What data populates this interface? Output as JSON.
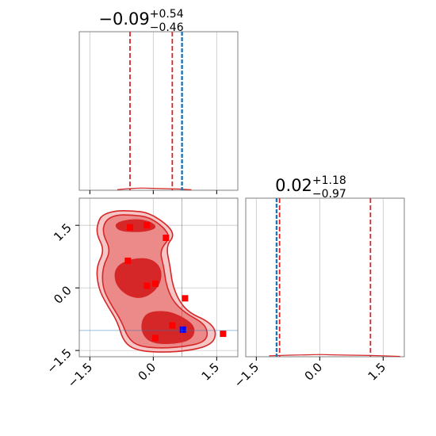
{
  "colors": {
    "kde": "#d62728",
    "kde_fill_outer": "#f6c6c6",
    "kde_fill_mid": "#ec8a8a",
    "kde_fill_inner": "#d62728",
    "truth": "#1f77b4",
    "markers": "#ff0000",
    "highlight": "#0000ff",
    "grid": "#b0b0b0"
  },
  "chart_data": [
    {
      "panel": "marginal-1",
      "type": "line",
      "title": {
        "median": "−0.09",
        "plus": "+0.54",
        "minus": "−0.46"
      },
      "xlim": [
        -1.75,
        2.0
      ],
      "quantile_lines": [
        -0.55,
        0.45
      ],
      "truth_line": 0.68,
      "density_x": [
        -0.85,
        -0.6,
        -0.3,
        0.0,
        0.3,
        0.6,
        0.9
      ],
      "density_y": [
        0.004,
        0.01,
        0.014,
        0.012,
        0.01,
        0.008,
        0.003
      ],
      "x_gridlines": [
        -1.5,
        0.0,
        1.5
      ]
    },
    {
      "panel": "marginal-2",
      "type": "line",
      "title": {
        "median": "0.02",
        "plus": "+1.18",
        "minus": "−0.97"
      },
      "xlim": [
        -1.75,
        2.0
      ],
      "quantile_lines": [
        -0.95,
        1.2
      ],
      "truth_line": -1.02,
      "density_x": [
        -1.2,
        -0.7,
        -0.3,
        0.0,
        0.3,
        0.7,
        1.2,
        1.5,
        1.9
      ],
      "density_y": [
        0.006,
        0.01,
        0.012,
        0.014,
        0.012,
        0.01,
        0.008,
        0.006,
        0.002
      ],
      "x_ticks": [
        "−1.5",
        "0.0",
        "1.5"
      ],
      "x_tick_values": [
        -1.5,
        0.0,
        1.5
      ]
    },
    {
      "panel": "joint",
      "type": "scatter",
      "xlim": [
        -1.75,
        2.0
      ],
      "ylim": [
        -1.65,
        2.15
      ],
      "x_ticks": [
        "−1.5",
        "0.0",
        "1.5"
      ],
      "x_tick_values": [
        -1.5,
        0.0,
        1.5
      ],
      "y_ticks": [
        "1.5",
        "0.0",
        "−1.5"
      ],
      "y_tick_values": [
        1.5,
        0.0,
        -1.5
      ],
      "contours": {
        "outer": [
          [
            -1.3,
            1.6
          ],
          [
            -1.2,
            1.75
          ],
          [
            -0.9,
            1.85
          ],
          [
            -0.5,
            1.85
          ],
          [
            -0.1,
            1.8
          ],
          [
            0.35,
            1.5
          ],
          [
            0.5,
            1.25
          ],
          [
            0.3,
            1.0
          ],
          [
            0.4,
            0.5
          ],
          [
            0.45,
            0.1
          ],
          [
            0.6,
            -0.3
          ],
          [
            0.85,
            -0.6
          ],
          [
            1.3,
            -0.8
          ],
          [
            1.5,
            -1.05
          ],
          [
            1.4,
            -1.35
          ],
          [
            0.9,
            -1.5
          ],
          [
            0.2,
            -1.55
          ],
          [
            -0.4,
            -1.5
          ],
          [
            -0.7,
            -1.3
          ],
          [
            -0.85,
            -0.8
          ],
          [
            -1.1,
            -0.4
          ],
          [
            -1.3,
            0.0
          ],
          [
            -1.35,
            0.5
          ],
          [
            -1.15,
            0.9
          ],
          [
            -1.35,
            1.3
          ]
        ],
        "mid": [
          [
            -1.15,
            1.6
          ],
          [
            -0.9,
            1.75
          ],
          [
            -0.5,
            1.75
          ],
          [
            -0.1,
            1.7
          ],
          [
            0.25,
            1.45
          ],
          [
            0.4,
            1.2
          ],
          [
            0.15,
            0.9
          ],
          [
            0.25,
            0.5
          ],
          [
            0.3,
            0.1
          ],
          [
            0.45,
            -0.3
          ],
          [
            0.75,
            -0.6
          ],
          [
            1.2,
            -0.85
          ],
          [
            1.3,
            -1.1
          ],
          [
            1.2,
            -1.3
          ],
          [
            0.8,
            -1.4
          ],
          [
            0.2,
            -1.45
          ],
          [
            -0.35,
            -1.4
          ],
          [
            -0.6,
            -1.2
          ],
          [
            -0.75,
            -0.8
          ],
          [
            -1.0,
            -0.4
          ],
          [
            -1.2,
            0.0
          ],
          [
            -1.2,
            0.5
          ],
          [
            -1.0,
            0.9
          ],
          [
            -1.2,
            1.3
          ]
        ],
        "inner": [
          [
            [
              -0.9,
              1.55
            ],
            [
              -0.5,
              1.65
            ],
            [
              -0.1,
              1.6
            ],
            [
              0.1,
              1.45
            ],
            [
              -0.2,
              1.35
            ],
            [
              -0.6,
              1.35
            ],
            [
              -0.85,
              1.4
            ]
          ],
          [
            [
              -0.9,
              0.5
            ],
            [
              -0.5,
              0.7
            ],
            [
              -0.05,
              0.7
            ],
            [
              0.2,
              0.45
            ],
            [
              0.15,
              0.05
            ],
            [
              -0.2,
              -0.25
            ],
            [
              -0.6,
              -0.2
            ],
            [
              -0.9,
              0.1
            ]
          ],
          [
            [
              -0.2,
              -0.6
            ],
            [
              0.3,
              -0.55
            ],
            [
              0.7,
              -0.7
            ],
            [
              1.0,
              -0.95
            ],
            [
              0.9,
              -1.25
            ],
            [
              0.4,
              -1.35
            ],
            [
              -0.1,
              -1.3
            ],
            [
              -0.3,
              -1.0
            ]
          ]
        ]
      },
      "points": [
        {
          "x": -0.55,
          "y": 1.45
        },
        {
          "x": -0.15,
          "y": 1.5
        },
        {
          "x": 0.3,
          "y": 1.2
        },
        {
          "x": -0.6,
          "y": 0.65
        },
        {
          "x": -0.15,
          "y": 0.05
        },
        {
          "x": 0.05,
          "y": 0.1
        },
        {
          "x": 0.75,
          "y": -0.25
        },
        {
          "x": 0.45,
          "y": -0.9
        },
        {
          "x": 0.05,
          "y": -1.2
        },
        {
          "x": 1.65,
          "y": -1.1
        }
      ],
      "highlight_point": {
        "x": 0.7,
        "y": -1.0
      },
      "truth_lines": {
        "x": 0.68,
        "y": -1.02
      }
    }
  ]
}
